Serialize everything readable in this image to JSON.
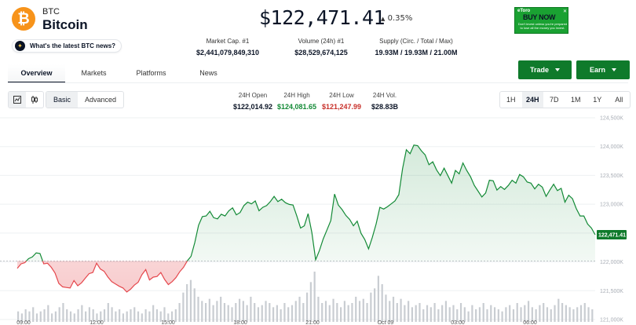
{
  "coin": {
    "icon": "bitcoin-icon",
    "icon_glyph": "₿",
    "symbol": "BTC",
    "name": "Bitcoin",
    "brand_color": "#f7931a"
  },
  "news_pill": {
    "icon": "sparkle-icon",
    "label": "What's the latest BTC news?"
  },
  "price": {
    "value": "$122,471.41",
    "change": "0.35%",
    "change_icon": "triangle-up-icon"
  },
  "ad": {
    "brand": "eToro",
    "cta": "BUY NOW",
    "disclaimer": "Don't invest unless you're prepared to lose all the money you invest.",
    "close_icon": "ad-close-icon",
    "color": "#1aa132"
  },
  "stats": [
    {
      "label": "Market Cap. #1",
      "value": "$2,441,079,849,310"
    },
    {
      "label": "Volume (24h) #1",
      "value": "$28,529,674,125"
    },
    {
      "label": "Supply (Circ. / Total / Max)",
      "value": "19.93M / 19.93M / 21.00M"
    }
  ],
  "actions": {
    "trade": "Trade",
    "earn": "Earn",
    "color": "#0f7a2b"
  },
  "tabs": [
    "Overview",
    "Markets",
    "Platforms",
    "News"
  ],
  "active_tab": "Overview",
  "chart_type_icons": [
    "line-chart-icon",
    "candlestick-icon"
  ],
  "modes": [
    "Basic",
    "Advanced"
  ],
  "active_mode": "Basic",
  "ohlc": [
    {
      "label": "24H Open",
      "value": "$122,014.92",
      "color": "#0b1426"
    },
    {
      "label": "24H High",
      "value": "$124,081.65",
      "color": "#138a36"
    },
    {
      "label": "24H Low",
      "value": "$121,247.99",
      "color": "#c8312b"
    },
    {
      "label": "24H Vol.",
      "value": "$28.83B",
      "color": "#0b1426"
    }
  ],
  "ranges": [
    "1H",
    "24H",
    "7D",
    "1M",
    "1Y",
    "All"
  ],
  "active_range": "24H",
  "chart_data": {
    "type": "area",
    "x_ticks": [
      "09:00",
      "12:00",
      "15:00",
      "18:00",
      "21:00",
      "Oct 09",
      "03:00",
      "06:00"
    ],
    "y_ticks": [
      "124,500K",
      "124,000K",
      "123,500K",
      "123,000K",
      "122,500K",
      "122,000K",
      "121,500K",
      "121,000K"
    ],
    "ylim": [
      121000,
      124500
    ],
    "baseline": 122014.92,
    "current_price_label": "122,471.41",
    "up_color": "#138a36",
    "down_color": "#e5484d",
    "price": [
      121886,
      121966,
      121986,
      122056,
      122086,
      122156,
      122146,
      121966,
      121976,
      121906,
      121806,
      121626,
      121566,
      121556,
      121546,
      121676,
      121586,
      121636,
      121716,
      121796,
      121816,
      121976,
      121876,
      121836,
      121736,
      121656,
      121616,
      121576,
      121546,
      121476,
      121526,
      121596,
      121646,
      121776,
      121866,
      121686,
      121736,
      121746,
      121816,
      121696,
      121606,
      121656,
      121726,
      121826,
      121906,
      122016,
      122096,
      122336,
      122636,
      122786,
      122796,
      122876,
      122766,
      122746,
      122826,
      122796,
      122886,
      122936,
      122816,
      122856,
      122976,
      123036,
      123006,
      123056,
      122886,
      122946,
      122976,
      123046,
      123136,
      123046,
      123086,
      123026,
      122996,
      122986,
      122796,
      122586,
      122626,
      122836,
      122506,
      122036,
      122196,
      122396,
      122556,
      122716,
      123176,
      122986,
      122906,
      122806,
      122736,
      122626,
      122706,
      122496,
      122386,
      122226,
      122426,
      122656,
      122946,
      122916,
      122956,
      123006,
      123056,
      123166,
      123616,
      123946,
      123876,
      124026,
      124016,
      123926,
      123856,
      123686,
      123736,
      123596,
      123496,
      123626,
      123496,
      123366,
      123586,
      123526,
      123716,
      123586,
      123476,
      123326,
      123226,
      123126,
      123196,
      123416,
      123406,
      123246,
      123306,
      123256,
      123326,
      123416,
      123366,
      123516,
      123476,
      123386,
      123366,
      123266,
      123346,
      123296,
      123136,
      123246,
      123346,
      123236,
      123276,
      123036,
      123156,
      123096,
      122926,
      122796,
      122796,
      122656,
      122586,
      122471
    ],
    "volume": [
      5,
      4,
      6,
      5,
      7,
      4,
      5,
      6,
      8,
      4,
      5,
      7,
      9,
      6,
      5,
      4,
      6,
      8,
      5,
      7,
      6,
      4,
      5,
      6,
      9,
      7,
      5,
      6,
      4,
      5,
      6,
      7,
      5,
      4,
      6,
      5,
      8,
      6,
      5,
      7,
      4,
      5,
      6,
      9,
      14,
      18,
      20,
      16,
      12,
      10,
      9,
      11,
      8,
      10,
      12,
      9,
      8,
      7,
      9,
      11,
      10,
      8,
      12,
      9,
      7,
      8,
      10,
      9,
      7,
      8,
      6,
      9,
      7,
      8,
      10,
      12,
      9,
      14,
      19,
      24,
      12,
      9,
      10,
      8,
      11,
      9,
      7,
      10,
      8,
      9,
      12,
      10,
      11,
      9,
      14,
      16,
      22,
      18,
      13,
      10,
      12,
      9,
      11,
      8,
      10,
      7,
      8,
      9,
      6,
      8,
      7,
      9,
      6,
      8,
      10,
      7,
      8,
      6,
      9,
      7,
      5,
      8,
      6,
      7,
      9,
      6,
      8,
      7,
      6,
      5,
      7,
      8,
      6,
      9,
      7,
      8,
      10,
      7,
      6,
      8,
      9,
      7,
      6,
      8,
      11,
      9,
      8,
      7,
      6,
      7,
      8,
      9,
      7,
      6
    ]
  }
}
